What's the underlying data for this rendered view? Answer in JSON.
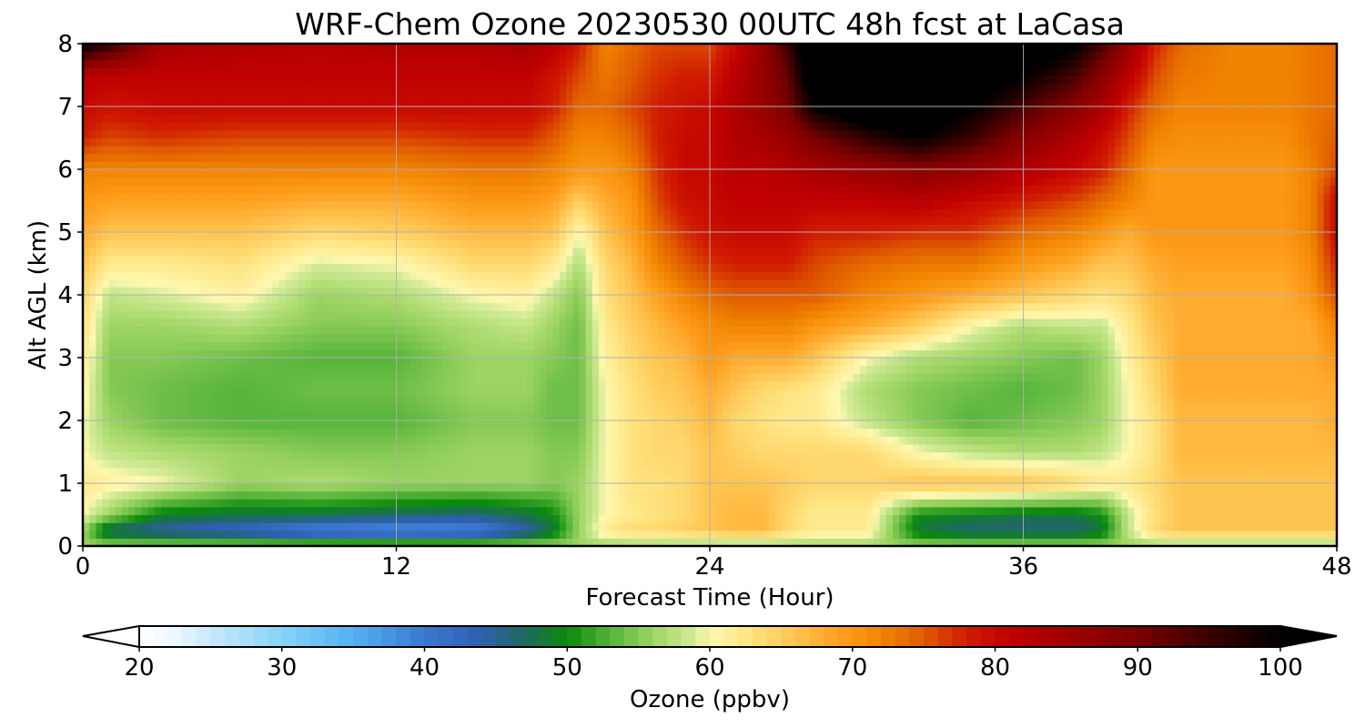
{
  "chart_data": {
    "type": "heatmap",
    "title": "WRF-Chem Ozone  20230530 00UTC 48h fcst at LaCasa",
    "xlabel": "Forecast Time (Hour)",
    "ylabel": "Alt AGL (km)",
    "xlim": [
      0,
      48
    ],
    "ylim": [
      0,
      8
    ],
    "x_ticks": [
      0,
      12,
      24,
      36,
      48
    ],
    "y_ticks": [
      0,
      1,
      2,
      3,
      4,
      5,
      6,
      7,
      8
    ],
    "grid": true,
    "x": [
      0,
      1,
      3,
      6,
      9,
      12,
      15,
      17,
      18,
      19,
      20,
      21,
      22,
      23,
      24,
      25,
      26,
      27,
      28,
      30,
      32,
      34,
      36,
      38,
      39,
      40,
      41,
      42,
      44,
      46,
      47,
      48
    ],
    "y": [
      0,
      0.25,
      0.5,
      1,
      1.5,
      2,
      2.5,
      3,
      3.5,
      4,
      4.5,
      5,
      5.5,
      6,
      6.5,
      7,
      7.5,
      8
    ],
    "z": [
      [
        56,
        56,
        56,
        56,
        56,
        56,
        56,
        56,
        56,
        56,
        56,
        56,
        56,
        56,
        56,
        56,
        56,
        56,
        56,
        56,
        56,
        56,
        56,
        56,
        56,
        56,
        56,
        56,
        56,
        56,
        56,
        56
      ],
      [
        56,
        46,
        44,
        42,
        38,
        37,
        38,
        44,
        48,
        56,
        62,
        64,
        64,
        65,
        66,
        67,
        67,
        64,
        62,
        62,
        48,
        46,
        46,
        46,
        48,
        58,
        64,
        66,
        66,
        66,
        66,
        66
      ],
      [
        60,
        56,
        49,
        48,
        48,
        47,
        46,
        48,
        50,
        56,
        60,
        62,
        63,
        64,
        66,
        67,
        67,
        64,
        62,
        62,
        50,
        49,
        48,
        48,
        50,
        58,
        63,
        66,
        66,
        66,
        66,
        66
      ],
      [
        62,
        61,
        60,
        56,
        57,
        56,
        56,
        56,
        55,
        56,
        60,
        63,
        63,
        64,
        66,
        66,
        66,
        65,
        64,
        64,
        66,
        66,
        66,
        64,
        62,
        62,
        64,
        66,
        66,
        66,
        66,
        66
      ],
      [
        60,
        58,
        57,
        56,
        55,
        55,
        56,
        56,
        55,
        55,
        60,
        63,
        64,
        64,
        66,
        65,
        64,
        64,
        64,
        64,
        60,
        58,
        57,
        57,
        58,
        60,
        63,
        67,
        67,
        67,
        67,
        67
      ],
      [
        60,
        56,
        54,
        53,
        53,
        53,
        55,
        55,
        54,
        54,
        60,
        63,
        64,
        65,
        67,
        64,
        63,
        62,
        62,
        58,
        55,
        53,
        54,
        55,
        56,
        60,
        63,
        67,
        67,
        67,
        67,
        68
      ],
      [
        61,
        55,
        54,
        53,
        54,
        54,
        56,
        56,
        54,
        54,
        60,
        63,
        65,
        66,
        68,
        66,
        64,
        63,
        62,
        57,
        55,
        54,
        53,
        54,
        56,
        60,
        64,
        68,
        68,
        68,
        68,
        68
      ],
      [
        62,
        55,
        55,
        54,
        53,
        53,
        56,
        56,
        55,
        54,
        61,
        64,
        66,
        67,
        70,
        68,
        68,
        68,
        66,
        60,
        57,
        56,
        55,
        54,
        56,
        61,
        65,
        68,
        68,
        68,
        68,
        70
      ],
      [
        63,
        56,
        56,
        57,
        55,
        55,
        57,
        58,
        56,
        54,
        62,
        65,
        67,
        69,
        71,
        72,
        72,
        72,
        70,
        68,
        65,
        60,
        57,
        58,
        58,
        62,
        66,
        68,
        68,
        68,
        68,
        72
      ],
      [
        64,
        58,
        59,
        61,
        56,
        57,
        60,
        61,
        58,
        55,
        63,
        66,
        69,
        72,
        74,
        75,
        75,
        75,
        75,
        72,
        70,
        68,
        66,
        64,
        63,
        64,
        67,
        68,
        68,
        68,
        70,
        76
      ],
      [
        66,
        62,
        62,
        63,
        59,
        60,
        64,
        64,
        62,
        57,
        64,
        67,
        72,
        75,
        77,
        78,
        78,
        78,
        76,
        74,
        73,
        73,
        70,
        68,
        66,
        66,
        68,
        69,
        69,
        69,
        71,
        78
      ],
      [
        68,
        66,
        66,
        66,
        64,
        65,
        67,
        67,
        66,
        60,
        66,
        69,
        74,
        77,
        79,
        80,
        80,
        80,
        78,
        78,
        77,
        77,
        74,
        72,
        70,
        68,
        70,
        70,
        70,
        70,
        72,
        80
      ],
      [
        70,
        69,
        69,
        69,
        68,
        68,
        70,
        70,
        69,
        65,
        68,
        70,
        76,
        79,
        80,
        81,
        81,
        81,
        81,
        81,
        82,
        80,
        78,
        76,
        74,
        72,
        70,
        70,
        70,
        70,
        72,
        80
      ],
      [
        72,
        72,
        72,
        72,
        72,
        72,
        73,
        73,
        72,
        70,
        70,
        72,
        77,
        80,
        80,
        82,
        82,
        83,
        84,
        86,
        88,
        86,
        83,
        80,
        78,
        74,
        70,
        70,
        70,
        70,
        72,
        76
      ],
      [
        78,
        76,
        77,
        76,
        76,
        76,
        77,
        77,
        75,
        72,
        72,
        74,
        78,
        80,
        80,
        83,
        84,
        86,
        90,
        96,
        100,
        95,
        88,
        83,
        80,
        76,
        72,
        71,
        71,
        71,
        73,
        75
      ],
      [
        80,
        79,
        80,
        80,
        80,
        80,
        80,
        80,
        78,
        74,
        74,
        76,
        78,
        79,
        80,
        83,
        86,
        90,
        100,
        105,
        105,
        100,
        94,
        88,
        84,
        78,
        74,
        72,
        72,
        72,
        73,
        74
      ],
      [
        82,
        81,
        81,
        81,
        81,
        81,
        81,
        81,
        79,
        76,
        73,
        75,
        77,
        78,
        78,
        82,
        86,
        92,
        105,
        108,
        108,
        105,
        100,
        94,
        88,
        82,
        76,
        73,
        72,
        72,
        73,
        74
      ],
      [
        100,
        96,
        84,
        83,
        82,
        83,
        83,
        84,
        82,
        78,
        72,
        74,
        76,
        76,
        76,
        80,
        86,
        95,
        108,
        108,
        108,
        108,
        108,
        100,
        94,
        86,
        78,
        74,
        72,
        72,
        73,
        74
      ]
    ],
    "colorbar": {
      "label": "Ozone  (ppbv)",
      "range": [
        20,
        100
      ],
      "ticks": [
        20,
        30,
        40,
        50,
        60,
        70,
        80,
        90,
        100
      ],
      "extend": "both",
      "colormap_stops": [
        [
          20,
          "#ffffff"
        ],
        [
          22,
          "#f3faff"
        ],
        [
          25,
          "#c9e9fb"
        ],
        [
          30,
          "#86d3f7"
        ],
        [
          35,
          "#52b2f2"
        ],
        [
          40,
          "#3a78cf"
        ],
        [
          44,
          "#2f5fb0"
        ],
        [
          47,
          "#1d6a5e"
        ],
        [
          50,
          "#0b8a0b"
        ],
        [
          53,
          "#56b43a"
        ],
        [
          56,
          "#9dd462"
        ],
        [
          59,
          "#d4ec98"
        ],
        [
          60,
          "#fff8b0"
        ],
        [
          63,
          "#ffe27e"
        ],
        [
          66,
          "#ffc450"
        ],
        [
          69,
          "#ffa020"
        ],
        [
          72,
          "#f28500"
        ],
        [
          75,
          "#e05c00"
        ],
        [
          78,
          "#d01c00"
        ],
        [
          81,
          "#c00000"
        ],
        [
          85,
          "#a00000"
        ],
        [
          90,
          "#7a0000"
        ],
        [
          95,
          "#3a0000"
        ],
        [
          100,
          "#000000"
        ]
      ]
    }
  }
}
